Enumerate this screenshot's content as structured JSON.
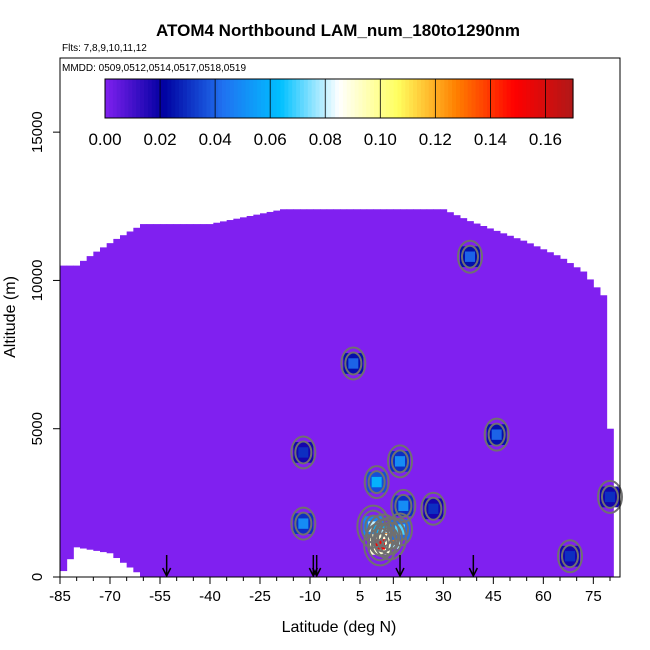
{
  "chart_data": {
    "type": "heatmap",
    "title": "ATOM4 Northbound LAM_num_180to1290nm",
    "subtitle_flights": "Flts: 7,8,9,10,11,12",
    "subtitle_dates": "MMDD: 0509,0512,0514,0517,0518,0519",
    "xlabel": "Latitude (deg N)",
    "ylabel": "Altitude (m)",
    "xlim": [
      -85,
      83
    ],
    "ylim": [
      0,
      17500
    ],
    "x_ticks": [
      -85,
      -70,
      -55,
      -40,
      -25,
      -10,
      5,
      15,
      30,
      45,
      60,
      75
    ],
    "y_ticks": [
      0,
      5000,
      10000,
      15000
    ],
    "colorbar": {
      "ticks": [
        0.0,
        0.02,
        0.04,
        0.06,
        0.08,
        0.1,
        0.12,
        0.14,
        0.16
      ],
      "tick_labels": [
        "0.00",
        "0.02",
        "0.04",
        "0.06",
        "0.08",
        "0.10",
        "0.12",
        "0.14",
        "0.16"
      ],
      "range": [
        0,
        0.17
      ],
      "colors": [
        "#8020f0",
        "#0000a0",
        "#2070f0",
        "#00c0ff",
        "#ffffff",
        "#ffff60",
        "#ff8000",
        "#ff0000",
        "#b01818"
      ]
    },
    "background_value": 0.0,
    "coverage_profile": [
      {
        "lat": -85,
        "top": 10500
      },
      {
        "lat": -80,
        "top": 10500
      },
      {
        "lat": -75,
        "top": 10900
      },
      {
        "lat": -68,
        "top": 11400
      },
      {
        "lat": -60,
        "top": 11900
      },
      {
        "lat": -40,
        "top": 11900
      },
      {
        "lat": -18,
        "top": 12400
      },
      {
        "lat": 30,
        "top": 12400
      },
      {
        "lat": 38,
        "top": 12000
      },
      {
        "lat": 55,
        "top": 11300
      },
      {
        "lat": 65,
        "top": 10800
      },
      {
        "lat": 72,
        "top": 10300
      },
      {
        "lat": 78,
        "top": 9500
      },
      {
        "lat": 80,
        "top": 5000
      },
      {
        "lat": 81,
        "top": 500
      }
    ],
    "coverage_bottom": [
      {
        "lat": -85,
        "bottom": 0
      },
      {
        "lat": -80,
        "bottom": 1000
      },
      {
        "lat": -70,
        "bottom": 800
      },
      {
        "lat": -60,
        "bottom": 0
      },
      {
        "lat": 81,
        "bottom": 0
      }
    ],
    "hotspots": [
      {
        "lat": 9,
        "alt": 1700,
        "value": 0.08
      },
      {
        "lat": 12,
        "alt": 1400,
        "value": 0.1
      },
      {
        "lat": 14,
        "alt": 1300,
        "value": 0.13
      },
      {
        "lat": 11,
        "alt": 1100,
        "value": 0.15
      },
      {
        "lat": 17,
        "alt": 1600,
        "value": 0.07
      },
      {
        "lat": 10,
        "alt": 3200,
        "value": 0.06
      },
      {
        "lat": 18,
        "alt": 2400,
        "value": 0.05
      },
      {
        "lat": -12,
        "alt": 1800,
        "value": 0.05
      },
      {
        "lat": -12,
        "alt": 4200,
        "value": 0.03
      },
      {
        "lat": 38,
        "alt": 10800,
        "value": 0.04
      },
      {
        "lat": 3,
        "alt": 7200,
        "value": 0.04
      },
      {
        "lat": 46,
        "alt": 4800,
        "value": 0.04
      },
      {
        "lat": 17,
        "alt": 3900,
        "value": 0.05
      },
      {
        "lat": 27,
        "alt": 2300,
        "value": 0.03
      },
      {
        "lat": 68,
        "alt": 700,
        "value": 0.03
      },
      {
        "lat": 80,
        "alt": 2700,
        "value": 0.03
      }
    ],
    "flight_markers_lat": [
      -53,
      -9,
      -8,
      17,
      39
    ]
  }
}
